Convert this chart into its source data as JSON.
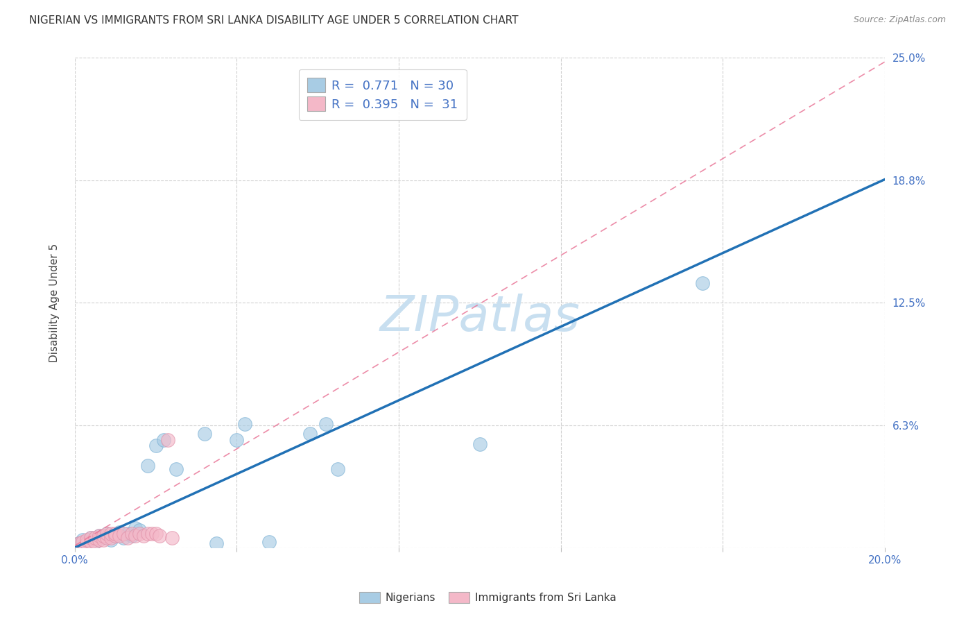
{
  "title": "NIGERIAN VS IMMIGRANTS FROM SRI LANKA DISABILITY AGE UNDER 5 CORRELATION CHART",
  "source": "Source: ZipAtlas.com",
  "ylabel": "Disability Age Under 5",
  "xlim": [
    0.0,
    0.2
  ],
  "ylim": [
    0.0,
    0.25
  ],
  "blue_color": "#a8cce4",
  "pink_color": "#f4b8c8",
  "blue_line_color": "#2171b5",
  "pink_line_color": "#e87093",
  "legend_R_blue": "0.771",
  "legend_N_blue": "30",
  "legend_R_pink": "0.395",
  "legend_N_pink": "31",
  "watermark": "ZIPatlas",
  "blue_scatter_x": [
    0.001,
    0.002,
    0.003,
    0.004,
    0.005,
    0.006,
    0.007,
    0.008,
    0.009,
    0.01,
    0.011,
    0.012,
    0.013,
    0.014,
    0.015,
    0.016,
    0.018,
    0.02,
    0.022,
    0.025,
    0.032,
    0.035,
    0.04,
    0.042,
    0.048,
    0.058,
    0.062,
    0.065,
    0.1,
    0.155
  ],
  "blue_scatter_y": [
    0.002,
    0.004,
    0.003,
    0.005,
    0.003,
    0.006,
    0.005,
    0.007,
    0.004,
    0.006,
    0.008,
    0.005,
    0.007,
    0.006,
    0.01,
    0.009,
    0.042,
    0.052,
    0.055,
    0.04,
    0.058,
    0.002,
    0.055,
    0.063,
    0.003,
    0.058,
    0.063,
    0.04,
    0.053,
    0.135
  ],
  "pink_scatter_x": [
    0.001,
    0.002,
    0.003,
    0.003,
    0.004,
    0.004,
    0.005,
    0.005,
    0.006,
    0.006,
    0.007,
    0.007,
    0.008,
    0.008,
    0.009,
    0.009,
    0.01,
    0.01,
    0.011,
    0.012,
    0.013,
    0.014,
    0.015,
    0.016,
    0.017,
    0.018,
    0.019,
    0.02,
    0.021,
    0.023,
    0.024
  ],
  "pink_scatter_y": [
    0.002,
    0.003,
    0.002,
    0.004,
    0.003,
    0.005,
    0.003,
    0.005,
    0.004,
    0.006,
    0.004,
    0.006,
    0.005,
    0.007,
    0.005,
    0.007,
    0.006,
    0.007,
    0.006,
    0.007,
    0.005,
    0.007,
    0.006,
    0.007,
    0.006,
    0.007,
    0.007,
    0.007,
    0.006,
    0.055,
    0.005
  ],
  "blue_line_x": [
    0.0,
    0.2
  ],
  "blue_line_y": [
    0.0,
    0.188
  ],
  "pink_line_x": [
    0.0,
    0.2
  ],
  "pink_line_y": [
    0.001,
    0.248
  ],
  "grid_color": "#d0d0d0",
  "background_color": "#ffffff",
  "title_fontsize": 11,
  "axis_label_fontsize": 11,
  "tick_fontsize": 11,
  "legend_fontsize": 13,
  "watermark_fontsize": 52,
  "watermark_color": "#c8dff0",
  "right_ytick_color": "#4472c4",
  "xtick_color": "#4472c4"
}
